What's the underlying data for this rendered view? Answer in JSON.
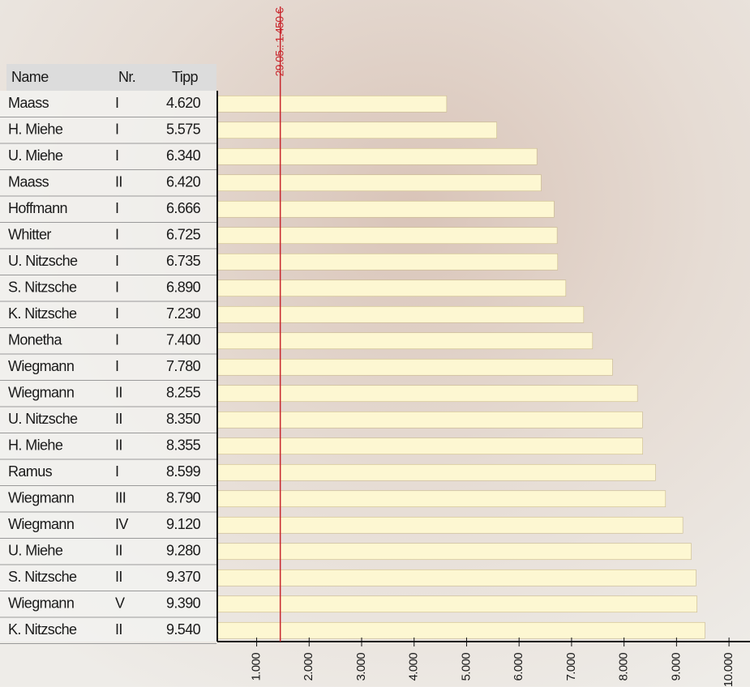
{
  "chart_data": {
    "type": "bar",
    "orientation": "horizontal",
    "columns": [
      "Name",
      "Nr.",
      "Tipp"
    ],
    "categories": [
      "Maass",
      "H. Miehe",
      "U. Miehe",
      "Maass",
      "Hoffmann",
      "Whitter",
      "U. Nitzsche",
      "S. Nitzsche",
      "K. Nitzsche",
      "Monetha",
      "Wiegmann",
      "Wiegmann",
      "U. Nitzsche",
      "H. Miehe",
      "Ramus",
      "Wiegmann",
      "Wiegmann",
      "U. Miehe",
      "S. Nitzsche",
      "Wiegmann",
      "K. Nitzsche"
    ],
    "nr": [
      "I",
      "I",
      "I",
      "II",
      "I",
      "I",
      "I",
      "I",
      "I",
      "I",
      "I",
      "II",
      "II",
      "II",
      "I",
      "III",
      "IV",
      "II",
      "II",
      "V",
      "II"
    ],
    "values": [
      4620,
      5575,
      6340,
      6420,
      6666,
      6725,
      6735,
      6890,
      7230,
      7400,
      7780,
      8255,
      8350,
      8355,
      8599,
      8790,
      9120,
      9280,
      9370,
      9390,
      9540
    ],
    "value_labels": [
      "4.620",
      "5.575",
      "6.340",
      "6.420",
      "6.666",
      "6.725",
      "6.735",
      "6.890",
      "7.230",
      "7.400",
      "7.780",
      "8.255",
      "8.350",
      "8.355",
      "8.599",
      "8.790",
      "9.120",
      "9.280",
      "9.370",
      "9.390",
      "9.540"
    ],
    "color": "#fdf7d2",
    "xlim": [
      250,
      10400
    ],
    "xticks": [
      {
        "value": 1000,
        "label": "1.000"
      },
      {
        "value": 2000,
        "label": "2.000"
      },
      {
        "value": 3000,
        "label": "3.000"
      },
      {
        "value": 4000,
        "label": "4.000"
      },
      {
        "value": 5000,
        "label": "5.000"
      },
      {
        "value": 6000,
        "label": "6.000"
      },
      {
        "value": 7000,
        "label": "7.000"
      },
      {
        "value": 8000,
        "label": "8.000"
      },
      {
        "value": 9000,
        "label": "9.000"
      },
      {
        "value": 10000,
        "label": "10.000"
      }
    ],
    "reference": {
      "value": 1450,
      "label": "29.05.: 1.450 €",
      "color": "#c8262c"
    }
  }
}
